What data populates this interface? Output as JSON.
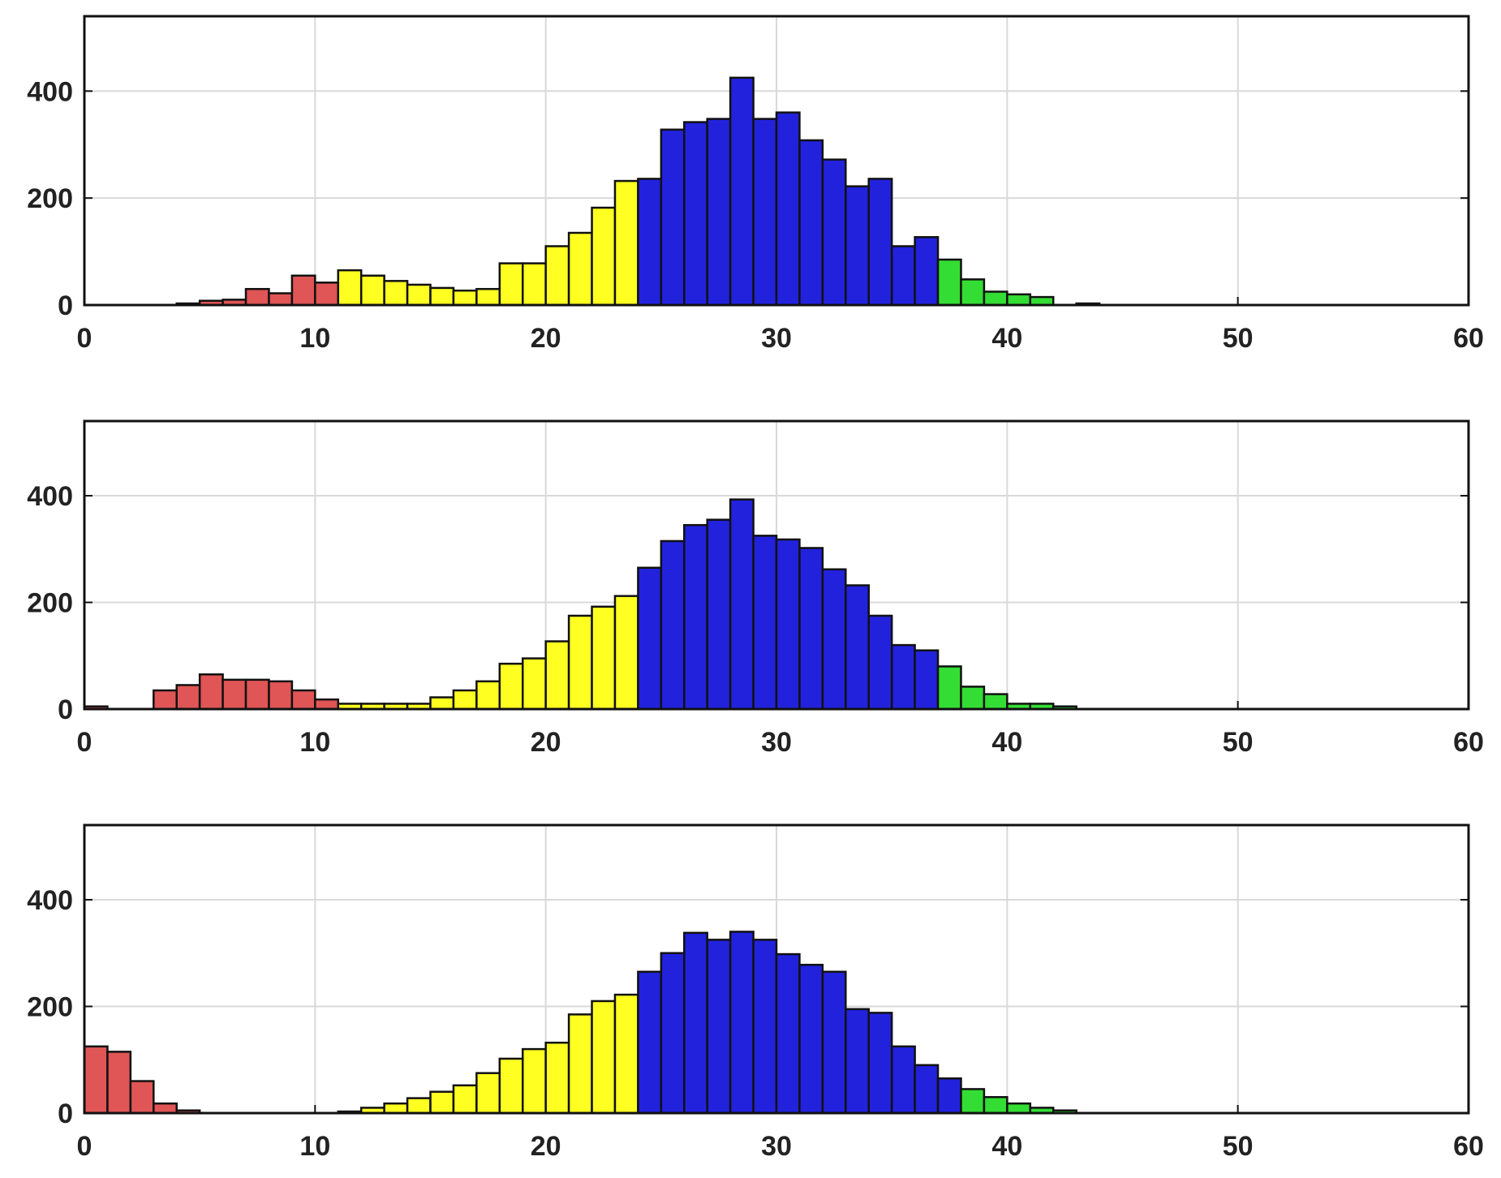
{
  "chart_data": [
    {
      "type": "bar",
      "bin_width": 1,
      "x_start": 0,
      "xlim": [
        0,
        60
      ],
      "ylim": [
        0,
        540
      ],
      "xticks": [
        "0",
        "10",
        "20",
        "30",
        "40",
        "50",
        "60"
      ],
      "yticks": [
        "0",
        "200",
        "400"
      ],
      "grid": true,
      "values": [
        0,
        0,
        0,
        0,
        3,
        8,
        10,
        30,
        22,
        55,
        42,
        65,
        55,
        45,
        38,
        32,
        27,
        30,
        78,
        78,
        110,
        135,
        182,
        232,
        236,
        328,
        342,
        348,
        425,
        348,
        360,
        308,
        272,
        222,
        236,
        110,
        127,
        85,
        48,
        25,
        20,
        15,
        0,
        3,
        0
      ],
      "colors": [
        "#e05555",
        "#e05555",
        "#e05555",
        "#e05555",
        "#e05555",
        "#e05555",
        "#e05555",
        "#e05555",
        "#e05555",
        "#e05555",
        "#e05555",
        "#ffff22",
        "#ffff22",
        "#ffff22",
        "#ffff22",
        "#ffff22",
        "#ffff22",
        "#ffff22",
        "#ffff22",
        "#ffff22",
        "#ffff22",
        "#ffff22",
        "#ffff22",
        "#ffff22",
        "#2222dd",
        "#2222dd",
        "#2222dd",
        "#2222dd",
        "#2222dd",
        "#2222dd",
        "#2222dd",
        "#2222dd",
        "#2222dd",
        "#2222dd",
        "#2222dd",
        "#2222dd",
        "#2222dd",
        "#33dd33",
        "#33dd33",
        "#33dd33",
        "#33dd33",
        "#33dd33",
        "#33dd33",
        "#33dd33",
        "#33dd33"
      ]
    },
    {
      "type": "bar",
      "bin_width": 1,
      "x_start": 0,
      "xlim": [
        0,
        60
      ],
      "ylim": [
        0,
        540
      ],
      "xticks": [
        "0",
        "10",
        "20",
        "30",
        "40",
        "50",
        "60"
      ],
      "yticks": [
        "0",
        "200",
        "400"
      ],
      "grid": true,
      "values": [
        5,
        0,
        0,
        35,
        45,
        65,
        55,
        55,
        52,
        35,
        18,
        10,
        10,
        10,
        10,
        22,
        35,
        52,
        85,
        95,
        127,
        175,
        192,
        212,
        265,
        315,
        345,
        355,
        393,
        325,
        318,
        302,
        262,
        232,
        175,
        120,
        110,
        80,
        42,
        28,
        10,
        10,
        5,
        0
      ],
      "colors": [
        "#e05555",
        "#e05555",
        "#e05555",
        "#e05555",
        "#e05555",
        "#e05555",
        "#e05555",
        "#e05555",
        "#e05555",
        "#e05555",
        "#e05555",
        "#ffff22",
        "#ffff22",
        "#ffff22",
        "#ffff22",
        "#ffff22",
        "#ffff22",
        "#ffff22",
        "#ffff22",
        "#ffff22",
        "#ffff22",
        "#ffff22",
        "#ffff22",
        "#ffff22",
        "#2222dd",
        "#2222dd",
        "#2222dd",
        "#2222dd",
        "#2222dd",
        "#2222dd",
        "#2222dd",
        "#2222dd",
        "#2222dd",
        "#2222dd",
        "#2222dd",
        "#2222dd",
        "#2222dd",
        "#33dd33",
        "#33dd33",
        "#33dd33",
        "#33dd33",
        "#33dd33",
        "#33dd33",
        "#33dd33"
      ]
    },
    {
      "type": "bar",
      "bin_width": 1,
      "x_start": 0,
      "xlim": [
        0,
        60
      ],
      "ylim": [
        0,
        540
      ],
      "xticks": [
        "0",
        "10",
        "20",
        "30",
        "40",
        "50",
        "60"
      ],
      "yticks": [
        "0",
        "200",
        "400"
      ],
      "grid": true,
      "values": [
        125,
        115,
        60,
        18,
        5,
        0,
        0,
        0,
        0,
        0,
        0,
        3,
        10,
        18,
        28,
        40,
        52,
        75,
        102,
        120,
        132,
        185,
        210,
        222,
        265,
        300,
        338,
        325,
        340,
        325,
        298,
        278,
        265,
        195,
        188,
        125,
        90,
        65,
        45,
        30,
        18,
        10,
        5,
        0
      ],
      "colors": [
        "#e05555",
        "#e05555",
        "#e05555",
        "#e05555",
        "#e05555",
        "#e05555",
        "#e05555",
        "#e05555",
        "#e05555",
        "#e05555",
        "#ffff22",
        "#ffff22",
        "#ffff22",
        "#ffff22",
        "#ffff22",
        "#ffff22",
        "#ffff22",
        "#ffff22",
        "#ffff22",
        "#ffff22",
        "#ffff22",
        "#ffff22",
        "#ffff22",
        "#ffff22",
        "#2222dd",
        "#2222dd",
        "#2222dd",
        "#2222dd",
        "#2222dd",
        "#2222dd",
        "#2222dd",
        "#2222dd",
        "#2222dd",
        "#2222dd",
        "#2222dd",
        "#2222dd",
        "#2222dd",
        "#2222dd",
        "#33dd33",
        "#33dd33",
        "#33dd33",
        "#33dd33",
        "#33dd33",
        "#33dd33"
      ]
    }
  ]
}
